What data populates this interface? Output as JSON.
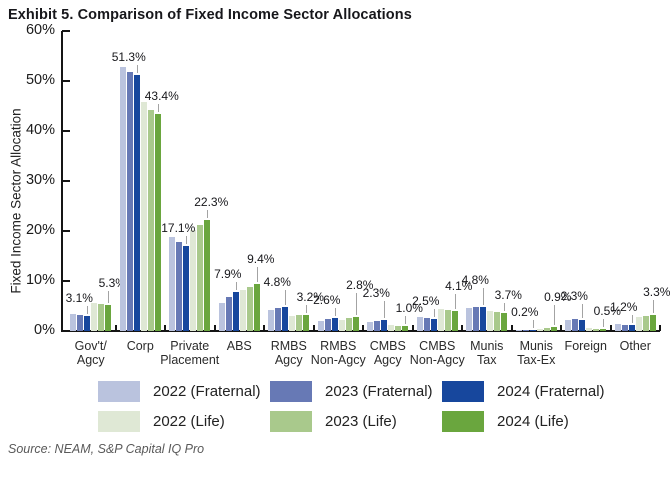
{
  "title": "Exhibit 5. Comparison of Fixed Income Sector Allocations",
  "source": "Source: NEAM, S&P Capital IQ Pro",
  "chart_data": {
    "type": "bar",
    "title": "Exhibit 5. Comparison of Fixed Income Sector Allocations",
    "xlabel": "",
    "ylabel": "Fixed Income Sector Allocation",
    "ylim": [
      0,
      60
    ],
    "y_ticks": [
      "0%",
      "10%",
      "20%",
      "30%",
      "40%",
      "50%",
      "60%"
    ],
    "grid": false,
    "legend_position": "bottom",
    "categories": [
      "Gov't/\nAgcy",
      "Corp",
      "Private\nPlacement",
      "ABS",
      "RMBS\nAgcy",
      "RMBS\nNon-Agcy",
      "CMBS\nAgcy",
      "CMBS\nNon-Agcy",
      "Munis\nTax",
      "Munis\nTax-Ex",
      "Foreign",
      "Other"
    ],
    "series": [
      {
        "name": "2022 (Fraternal)",
        "color": "#bac3de",
        "labeled": false,
        "values": [
          3.4,
          52.9,
          18.9,
          5.6,
          4.3,
          2.1,
          1.8,
          2.9,
          4.6,
          0.2,
          2.2,
          1.4
        ]
      },
      {
        "name": "2023 (Fraternal)",
        "color": "#6779b5",
        "labeled": false,
        "values": [
          3.3,
          51.8,
          17.9,
          6.8,
          4.6,
          2.4,
          2.1,
          2.7,
          4.9,
          0.2,
          2.4,
          1.3
        ]
      },
      {
        "name": "2024 (Fraternal)",
        "color": "#17479d",
        "labeled": true,
        "values": [
          3.1,
          51.3,
          17.1,
          7.9,
          4.8,
          2.6,
          2.3,
          2.5,
          4.8,
          0.2,
          2.3,
          1.2
        ]
      },
      {
        "name": "2022 (Life)",
        "color": "#dfe8d5",
        "labeled": false,
        "values": [
          5.6,
          45.9,
          20.3,
          8.3,
          3.0,
          2.3,
          1.2,
          4.4,
          4.1,
          0.4,
          0.6,
          2.9
        ]
      },
      {
        "name": "2023 (Life)",
        "color": "#a9c98c",
        "labeled": false,
        "values": [
          5.5,
          44.2,
          21.3,
          8.8,
          3.2,
          2.6,
          1.1,
          4.3,
          3.9,
          0.6,
          0.5,
          3.1
        ]
      },
      {
        "name": "2024 (Life)",
        "color": "#6aa63e",
        "labeled": true,
        "values": [
          5.3,
          43.4,
          22.3,
          9.4,
          3.2,
          2.8,
          1.0,
          4.1,
          3.7,
          0.9,
          0.5,
          3.3
        ]
      }
    ],
    "data_label_format": "one decimal + percent sign, shown for 2024 (Fraternal) and 2024 (Life) bars"
  }
}
